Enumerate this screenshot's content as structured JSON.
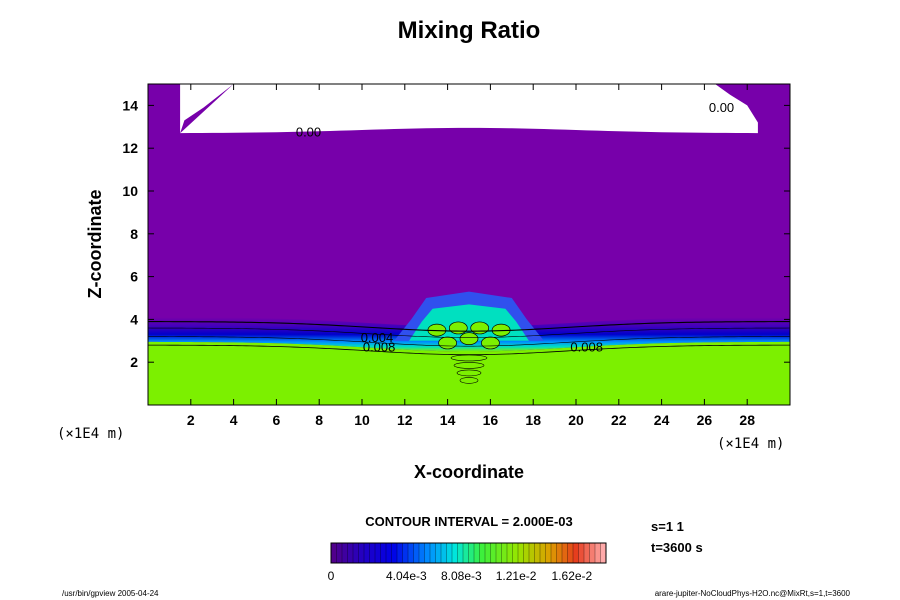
{
  "chart_data": {
    "type": "heatmap",
    "title": "Mixing Ratio",
    "xlabel": "X-coordinate",
    "ylabel": "Z-coordinate",
    "x_unit": "(×1E4 m)",
    "z_unit": "(×1E4 m)",
    "xlim": [
      0,
      30
    ],
    "ylim": [
      0,
      15
    ],
    "x_ticks": [
      2,
      4,
      6,
      8,
      10,
      12,
      14,
      16,
      18,
      20,
      22,
      24,
      26,
      28
    ],
    "y_ticks": [
      2,
      4,
      6,
      8,
      10,
      12,
      14
    ],
    "contour_labels": [
      {
        "text": "0.00",
        "x": 7.5,
        "z": 12.55
      },
      {
        "text": "0.00",
        "x": 26.8,
        "z": 13.7
      },
      {
        "text": "0.004",
        "x": 10.7,
        "z": 2.95
      },
      {
        "text": "0.008",
        "x": 10.8,
        "z": 2.5
      },
      {
        "text": "0.008",
        "x": 20.5,
        "z": 2.5
      }
    ],
    "contour_interval": "CONTOUR INTERVAL = 2.000E-03",
    "colorbar": {
      "min": 0,
      "max": 0.0202,
      "n_levels": 50,
      "tick_labels": [
        {
          "value": 0,
          "text": "0"
        },
        {
          "value": 0.00404,
          "text": "4.04e-3"
        },
        {
          "value": 0.00808,
          "text": "8.08e-3"
        },
        {
          "value": 0.0121,
          "text": "1.21e-2"
        },
        {
          "value": 0.0162,
          "text": "1.62e-2"
        }
      ]
    },
    "info": {
      "slice": "s=1 1",
      "time": "t=3600 s"
    },
    "footer_left": "/usr/bin/gpview 2005-04-24",
    "footer_right": "arare-jupiter-NoCloudPhys-H2O.nc@MixRt,s=1,t=3600"
  },
  "colors": {
    "background_region": "#7700aa",
    "lower_layer": "#7cf000",
    "empty_region": "#ffffff"
  }
}
